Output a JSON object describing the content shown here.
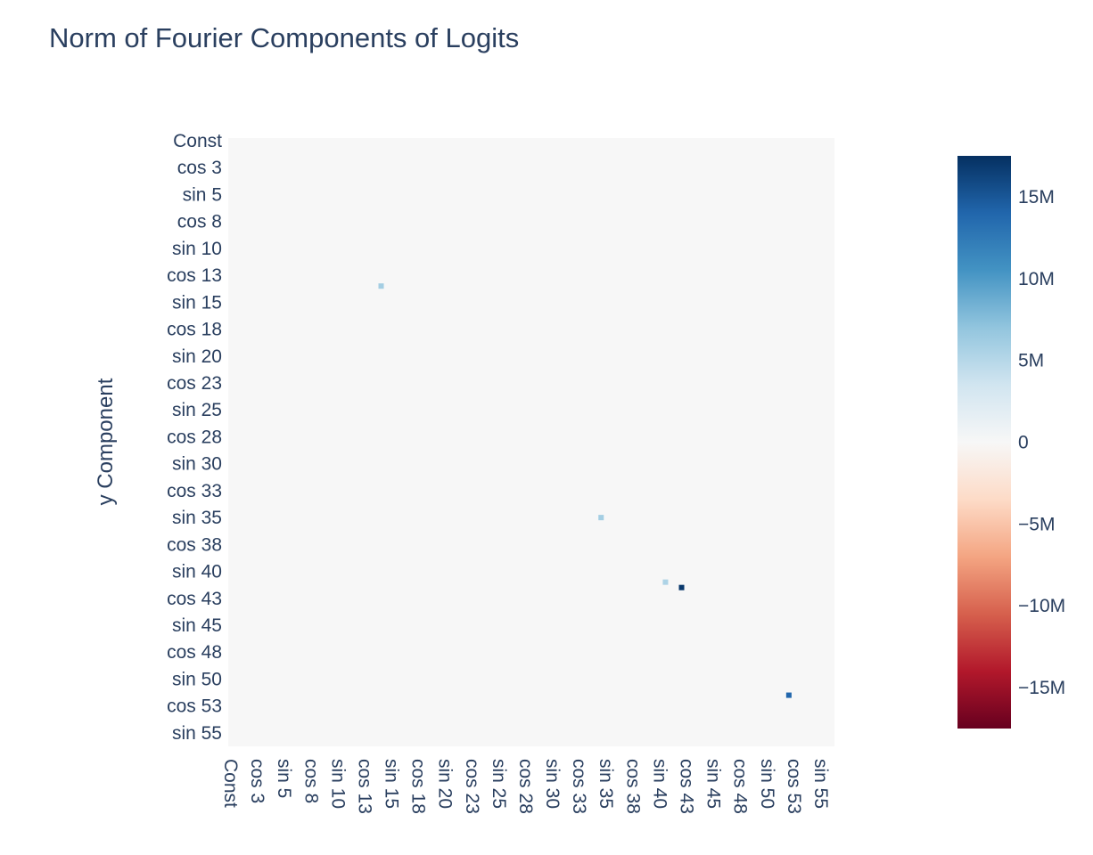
{
  "chart_data": {
    "type": "heatmap",
    "title": "Norm of Fourier Components of Logits",
    "xlabel": "",
    "ylabel": "y Component",
    "x_tick_labels": [
      "Const",
      "cos 3",
      "sin 5",
      "cos 8",
      "sin 10",
      "cos 13",
      "sin 15",
      "cos 18",
      "sin 20",
      "cos 23",
      "sin 25",
      "cos 28",
      "sin 30",
      "cos 33",
      "sin 35",
      "cos 38",
      "sin 40",
      "cos 43",
      "sin 45",
      "cos 48",
      "sin 50",
      "cos 53",
      "sin 55"
    ],
    "y_tick_labels": [
      "Const",
      "cos 3",
      "sin 5",
      "cos 8",
      "sin 10",
      "cos 13",
      "sin 15",
      "cos 18",
      "sin 20",
      "cos 23",
      "sin 25",
      "cos 28",
      "sin 30",
      "cos 33",
      "sin 35",
      "cos 38",
      "sin 40",
      "cos 43",
      "sin 45",
      "cos 48",
      "sin 50",
      "cos 53",
      "sin 55"
    ],
    "colorscale": "RdBu",
    "zlim": [
      -17500000,
      17500000
    ],
    "colorbar_ticks": [
      {
        "value": 15000000,
        "label": "15M"
      },
      {
        "value": 10000000,
        "label": "10M"
      },
      {
        "value": 5000000,
        "label": "5M"
      },
      {
        "value": 0,
        "label": "0"
      },
      {
        "value": -5000000,
        "label": "−5M"
      },
      {
        "value": -10000000,
        "label": "−10M"
      },
      {
        "value": -15000000,
        "label": "−15M"
      }
    ],
    "background_value": 0,
    "nonzero_cells": [
      {
        "x": "sin 14",
        "y": "cos 14",
        "value": 6000000
      },
      {
        "x": "cos 35",
        "y": "sin 35",
        "value": 6000000
      },
      {
        "x": "cos 41",
        "y": "sin 41",
        "value": 5500000
      },
      {
        "x": "sin 42",
        "y": "cos 42",
        "value": 17000000
      },
      {
        "x": "sin 52",
        "y": "cos 52",
        "value": 14000000
      }
    ]
  }
}
